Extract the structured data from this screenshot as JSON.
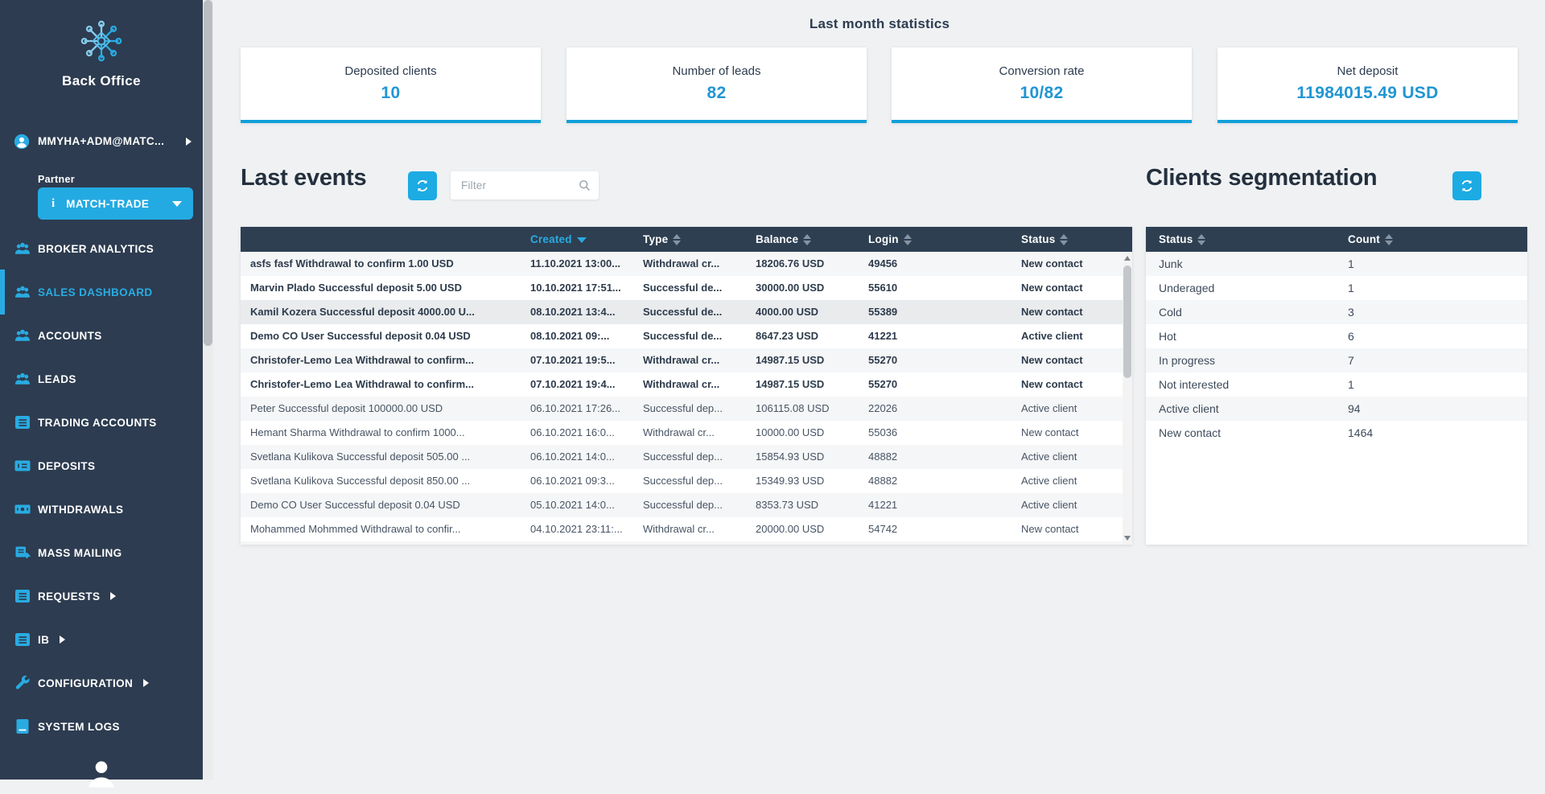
{
  "colors": {
    "accent": "#29abe2",
    "sidebar": "#2d3c50",
    "table_header": "#2e3f52",
    "card_value": "#2196d3",
    "card_border": "#129fd9"
  },
  "sidebar": {
    "logo_label": "Back Office",
    "user": {
      "email": "MMYHA+ADM@MATC...",
      "icon": "user-avatar"
    },
    "partner": {
      "label": "Partner",
      "selected": "MATCH-TRADE",
      "icon": "info-icon"
    },
    "items": [
      {
        "slug": "broker-analytics",
        "label": "BROKER ANALYTICS",
        "icon": "users",
        "active": false,
        "has_submenu": false
      },
      {
        "slug": "sales-dashboard",
        "label": "SALES DASHBOARD",
        "icon": "users",
        "active": true,
        "has_submenu": false
      },
      {
        "slug": "accounts",
        "label": "ACCOUNTS",
        "icon": "users",
        "active": false,
        "has_submenu": false
      },
      {
        "slug": "leads",
        "label": "LEADS",
        "icon": "users",
        "active": false,
        "has_submenu": false
      },
      {
        "slug": "trading-accounts",
        "label": "TRADING ACCOUNTS",
        "icon": "list",
        "active": false,
        "has_submenu": false
      },
      {
        "slug": "deposits",
        "label": "DEPOSITS",
        "icon": "money",
        "active": false,
        "has_submenu": false
      },
      {
        "slug": "withdrawals",
        "label": "WITHDRAWALS",
        "icon": "banknote",
        "active": false,
        "has_submenu": false
      },
      {
        "slug": "mass-mailing",
        "label": "MASS MAILING",
        "icon": "mail-send",
        "active": false,
        "has_submenu": false
      },
      {
        "slug": "requests",
        "label": "REQUESTS",
        "icon": "list",
        "active": false,
        "has_submenu": true
      },
      {
        "slug": "ib",
        "label": "IB",
        "icon": "list",
        "active": false,
        "has_submenu": true
      },
      {
        "slug": "configuration",
        "label": "CONFIGURATION",
        "icon": "wrench",
        "active": false,
        "has_submenu": true
      },
      {
        "slug": "system-logs",
        "label": "SYSTEM LOGS",
        "icon": "book",
        "active": false,
        "has_submenu": false
      }
    ]
  },
  "stats": {
    "title": "Last month statistics",
    "cards": [
      {
        "label": "Deposited clients",
        "value": "10"
      },
      {
        "label": "Number of leads",
        "value": "82"
      },
      {
        "label": "Conversion rate",
        "value": "10/82"
      },
      {
        "label": "Net deposit",
        "value": "11984015.49 USD"
      }
    ]
  },
  "events": {
    "title": "Last events",
    "refresh_icon": "refresh-icon",
    "filter": {
      "placeholder": "Filter",
      "value": "",
      "icon": "search-icon"
    },
    "columns": [
      {
        "key": "description",
        "label": "",
        "sortable": false
      },
      {
        "key": "created",
        "label": "Created",
        "sortable": true,
        "sorted": "desc"
      },
      {
        "key": "type",
        "label": "Type",
        "sortable": true
      },
      {
        "key": "balance",
        "label": "Balance",
        "sortable": true
      },
      {
        "key": "login",
        "label": "Login",
        "sortable": true
      },
      {
        "key": "status",
        "label": "Status",
        "sortable": true
      }
    ],
    "rows": [
      {
        "description": "asfs fasf Withdrawal to confirm 1.00 USD",
        "created": "11.10.2021 13:00...",
        "type": "Withdrawal cr...",
        "balance": "18206.76 USD",
        "login": "49456",
        "status": "New contact",
        "bold": true,
        "highlighted": false
      },
      {
        "description": "Marvin Plado Successful deposit 5.00 USD",
        "created": "10.10.2021 17:51...",
        "type": "Successful de...",
        "balance": "30000.00 USD",
        "login": "55610",
        "status": "New contact",
        "bold": true,
        "highlighted": false
      },
      {
        "description": "Kamil Kozera Successful deposit 4000.00 U...",
        "created": "08.10.2021 13:4...",
        "type": "Successful de...",
        "balance": "4000.00 USD",
        "login": "55389",
        "status": "New contact",
        "bold": true,
        "highlighted": true
      },
      {
        "description": "Demo CO User Successful deposit 0.04 USD",
        "created": "08.10.2021 09:...",
        "type": "Successful de...",
        "balance": "8647.23 USD",
        "login": "41221",
        "status": "Active client",
        "bold": true,
        "highlighted": false
      },
      {
        "description": "Christofer-Lemo Lea Withdrawal to confirm...",
        "created": "07.10.2021 19:5...",
        "type": "Withdrawal cr...",
        "balance": "14987.15 USD",
        "login": "55270",
        "status": "New contact",
        "bold": true,
        "highlighted": false
      },
      {
        "description": "Christofer-Lemo Lea Withdrawal to confirm...",
        "created": "07.10.2021 19:4...",
        "type": "Withdrawal cr...",
        "balance": "14987.15 USD",
        "login": "55270",
        "status": "New contact",
        "bold": true,
        "highlighted": false
      },
      {
        "description": "Peter Successful deposit 100000.00 USD",
        "created": "06.10.2021 17:26...",
        "type": "Successful dep...",
        "balance": "106115.08 USD",
        "login": "22026",
        "status": "Active client",
        "bold": false,
        "highlighted": false
      },
      {
        "description": "Hemant Sharma Withdrawal to confirm 1000...",
        "created": "06.10.2021 16:0...",
        "type": "Withdrawal cr...",
        "balance": "10000.00 USD",
        "login": "55036",
        "status": "New contact",
        "bold": false,
        "highlighted": false
      },
      {
        "description": "Svetlana Kulikova Successful deposit 505.00 ...",
        "created": "06.10.2021 14:0...",
        "type": "Successful dep...",
        "balance": "15854.93 USD",
        "login": "48882",
        "status": "Active client",
        "bold": false,
        "highlighted": false
      },
      {
        "description": "Svetlana Kulikova Successful deposit 850.00 ...",
        "created": "06.10.2021 09:3...",
        "type": "Successful dep...",
        "balance": "15349.93 USD",
        "login": "48882",
        "status": "Active client",
        "bold": false,
        "highlighted": false
      },
      {
        "description": "Demo CO User Successful deposit 0.04 USD",
        "created": "05.10.2021 14:0...",
        "type": "Successful dep...",
        "balance": "8353.73 USD",
        "login": "41221",
        "status": "Active client",
        "bold": false,
        "highlighted": false
      },
      {
        "description": "Mohammed Mohmmed Withdrawal to confir...",
        "created": "04.10.2021 23:11:...",
        "type": "Withdrawal cr...",
        "balance": "20000.00 USD",
        "login": "54742",
        "status": "New contact",
        "bold": false,
        "highlighted": false
      }
    ]
  },
  "segmentation": {
    "title": "Clients segmentation",
    "refresh_icon": "refresh-icon",
    "columns": [
      {
        "key": "status",
        "label": "Status",
        "sortable": true
      },
      {
        "key": "count",
        "label": "Count",
        "sortable": true
      }
    ],
    "rows": [
      {
        "status": "Junk",
        "count": "1"
      },
      {
        "status": "Underaged",
        "count": "1"
      },
      {
        "status": "Cold",
        "count": "3"
      },
      {
        "status": "Hot",
        "count": "6"
      },
      {
        "status": "In progress",
        "count": "7"
      },
      {
        "status": "Not interested",
        "count": "1"
      },
      {
        "status": "Active client",
        "count": "94"
      },
      {
        "status": "New contact",
        "count": "1464"
      }
    ]
  }
}
